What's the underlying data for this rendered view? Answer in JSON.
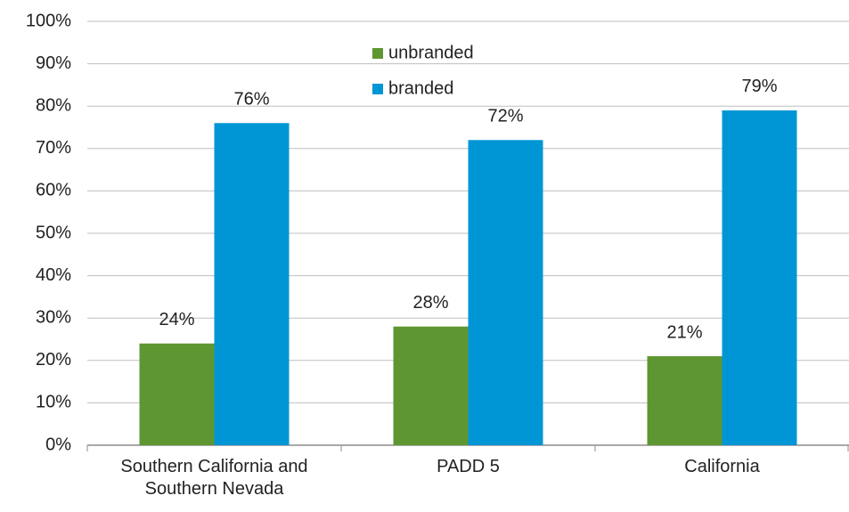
{
  "chart_data": {
    "type": "bar",
    "categories": [
      "Southern California and Southern Nevada",
      "PADD 5",
      "California"
    ],
    "series": [
      {
        "name": "unbranded",
        "color": "#5e9732",
        "values": [
          24,
          28,
          21
        ],
        "value_labels": [
          "24%",
          "28%",
          "21%"
        ]
      },
      {
        "name": "branded",
        "color": "#0096d6",
        "values": [
          76,
          72,
          79
        ],
        "value_labels": [
          "76%",
          "72%",
          "79%"
        ]
      }
    ],
    "ylim": [
      0,
      100
    ],
    "yticks": [
      {
        "value": 0,
        "label": "0%"
      },
      {
        "value": 10,
        "label": "10%"
      },
      {
        "value": 20,
        "label": "20%"
      },
      {
        "value": 30,
        "label": "30%"
      },
      {
        "value": 40,
        "label": "40%"
      },
      {
        "value": 50,
        "label": "50%"
      },
      {
        "value": 60,
        "label": "60%"
      },
      {
        "value": 70,
        "label": "70%"
      },
      {
        "value": 80,
        "label": "80%"
      },
      {
        "value": 90,
        "label": "90%"
      },
      {
        "value": 100,
        "label": "100%"
      }
    ],
    "grid": true,
    "legend": "top"
  }
}
